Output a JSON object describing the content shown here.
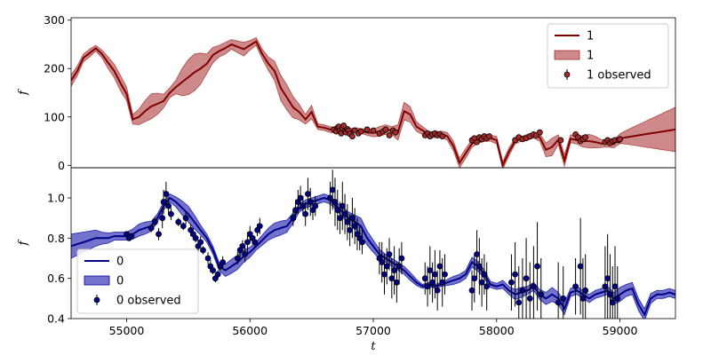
{
  "chart_data": [
    {
      "type": "line",
      "panel": "top",
      "ylabel": "f",
      "xlabel": "",
      "xlim": [
        54550,
        59450
      ],
      "ylim": [
        -5,
        305
      ],
      "yticks": [
        0,
        100,
        200,
        300
      ],
      "colors": {
        "line": "#800000",
        "band": "#a52a2a",
        "points": "#a52a2a"
      },
      "legend": {
        "placement": "top-right",
        "entries": [
          {
            "label": "1",
            "kind": "line"
          },
          {
            "label": "1",
            "kind": "band"
          },
          {
            "label": "1 observed",
            "kind": "points"
          }
        ]
      },
      "model": {
        "x": [
          54550,
          54600,
          54650,
          54700,
          54750,
          54800,
          54850,
          54900,
          54950,
          55000,
          55050,
          55100,
          55150,
          55200,
          55250,
          55300,
          55350,
          55400,
          55450,
          55500,
          55550,
          55600,
          55650,
          55700,
          55750,
          55800,
          55850,
          55900,
          55950,
          56000,
          56050,
          56100,
          56150,
          56200,
          56250,
          56300,
          56350,
          56400,
          56450,
          56500,
          56550,
          56600,
          56650,
          56700,
          56750,
          56800,
          56850,
          56900,
          56950,
          57000,
          57050,
          57100,
          57150,
          57200,
          57250,
          57300,
          57350,
          57400,
          57450,
          57500,
          57550,
          57600,
          57650,
          57700,
          57750,
          57800,
          57850,
          57900,
          57950,
          58000,
          58050,
          58100,
          58150,
          58200,
          58250,
          58300,
          58350,
          58400,
          58450,
          58500,
          58550,
          58600,
          58650,
          58700,
          58750,
          58800,
          58850,
          58900,
          58950,
          59000,
          59050,
          59100,
          59150,
          59200,
          59250,
          59300,
          59350,
          59400,
          59450
        ],
        "y": [
          175,
          195,
          222,
          232,
          242,
          230,
          212,
          195,
          170,
          148,
          95,
          100,
          112,
          122,
          127,
          133,
          150,
          162,
          172,
          182,
          192,
          200,
          210,
          228,
          236,
          242,
          250,
          245,
          240,
          248,
          256,
          230,
          210,
          195,
          160,
          140,
          120,
          110,
          95,
          110,
          80,
          78,
          74,
          72,
          70,
          70,
          73,
          71,
          68,
          67,
          70,
          74,
          72,
          68,
          112,
          105,
          80,
          72,
          64,
          63,
          65,
          60,
          40,
          5,
          25,
          45,
          52,
          55,
          56,
          52,
          0,
          28,
          50,
          55,
          58,
          62,
          58,
          32,
          38,
          53,
          10,
          55,
          52,
          50,
          50,
          48,
          45,
          46,
          44,
          55,
          58,
          60,
          62,
          64,
          66,
          68,
          70,
          72,
          74
        ],
        "band_halfwidth": [
          12,
          10,
          8,
          8,
          6,
          8,
          12,
          14,
          16,
          14,
          10,
          16,
          22,
          26,
          22,
          14,
          10,
          14,
          28,
          36,
          38,
          32,
          20,
          16,
          12,
          12,
          10,
          12,
          14,
          10,
          8,
          10,
          14,
          20,
          26,
          26,
          22,
          16,
          10,
          14,
          6,
          6,
          6,
          6,
          5,
          5,
          5,
          5,
          6,
          8,
          10,
          10,
          8,
          16,
          18,
          16,
          10,
          8,
          6,
          6,
          6,
          8,
          10,
          10,
          10,
          8,
          6,
          6,
          6,
          8,
          8,
          8,
          6,
          5,
          6,
          6,
          8,
          14,
          18,
          10,
          12,
          8,
          8,
          12,
          14,
          12,
          8,
          8,
          8,
          10,
          14,
          18,
          22,
          26,
          30,
          34,
          38,
          42,
          46
        ]
      },
      "observed": {
        "x": [
          56680,
          56700,
          56710,
          56720,
          56730,
          56740,
          56750,
          56760,
          56770,
          56780,
          56790,
          56800,
          56810,
          56830,
          56850,
          56880,
          56900,
          56950,
          57000,
          57050,
          57080,
          57100,
          57130,
          57160,
          57180,
          57420,
          57440,
          57460,
          57480,
          57500,
          57520,
          57540,
          57560,
          57800,
          57820,
          57840,
          57860,
          57880,
          57900,
          57920,
          57940,
          58150,
          58180,
          58210,
          58240,
          58270,
          58300,
          58320,
          58350,
          58520,
          58640,
          58660,
          58680,
          58700,
          58720,
          58880,
          58900,
          58920,
          58940,
          58960,
          58990,
          59000
        ],
        "y": [
          74,
          70,
          78,
          80,
          72,
          66,
          76,
          82,
          70,
          68,
          75,
          72,
          65,
          60,
          72,
          66,
          70,
          74,
          72,
          66,
          70,
          74,
          62,
          72,
          68,
          62,
          66,
          60,
          64,
          66,
          62,
          64,
          60,
          52,
          56,
          48,
          58,
          54,
          60,
          56,
          60,
          52,
          58,
          54,
          56,
          60,
          64,
          62,
          68,
          52,
          64,
          58,
          50,
          54,
          58,
          48,
          52,
          46,
          50,
          52,
          52,
          54
        ]
      }
    },
    {
      "type": "line",
      "panel": "bottom",
      "ylabel": "f",
      "xlabel": "t",
      "xlim": [
        54550,
        59450
      ],
      "ylim": [
        0.4,
        1.15
      ],
      "yticks": [
        0.4,
        0.6,
        0.8,
        1.0
      ],
      "yticklabels": [
        "0.4",
        "0.6",
        "0.8",
        "1.0"
      ],
      "xticks": [
        55000,
        56000,
        57000,
        58000,
        59000
      ],
      "colors": {
        "line": "#00008b",
        "band": "#0000a0",
        "points": "#00008b"
      },
      "legend": {
        "placement": "bottom-left",
        "entries": [
          {
            "label": "0",
            "kind": "line"
          },
          {
            "label": "0",
            "kind": "band"
          },
          {
            "label": "0 observed",
            "kind": "points"
          }
        ]
      },
      "model": {
        "x": [
          54550,
          54600,
          54650,
          54700,
          54750,
          54800,
          54850,
          54900,
          54950,
          55000,
          55050,
          55100,
          55150,
          55200,
          55250,
          55300,
          55350,
          55400,
          55450,
          55500,
          55550,
          55600,
          55650,
          55700,
          55750,
          55800,
          55850,
          55900,
          55950,
          56000,
          56050,
          56100,
          56150,
          56200,
          56250,
          56300,
          56350,
          56400,
          56450,
          56500,
          56550,
          56600,
          56650,
          56700,
          56750,
          56800,
          56850,
          56900,
          56950,
          57000,
          57050,
          57100,
          57150,
          57200,
          57250,
          57300,
          57350,
          57400,
          57450,
          57500,
          57550,
          57600,
          57650,
          57700,
          57750,
          57800,
          57850,
          57900,
          57950,
          58000,
          58050,
          58100,
          58150,
          58200,
          58250,
          58300,
          58350,
          58400,
          58450,
          58500,
          58550,
          58600,
          58650,
          58700,
          58750,
          58800,
          58850,
          58900,
          58950,
          59000,
          59050,
          59100,
          59150,
          59200,
          59250,
          59300,
          59350,
          59400,
          59450
        ],
        "y": [
          0.76,
          0.77,
          0.78,
          0.79,
          0.8,
          0.8,
          0.8,
          0.81,
          0.81,
          0.81,
          0.82,
          0.84,
          0.85,
          0.86,
          0.9,
          0.96,
          1.0,
          0.98,
          0.95,
          0.92,
          0.88,
          0.84,
          0.8,
          0.74,
          0.66,
          0.64,
          0.66,
          0.68,
          0.71,
          0.73,
          0.76,
          0.79,
          0.82,
          0.84,
          0.85,
          0.86,
          0.9,
          0.95,
          0.97,
          0.98,
          0.99,
          1.0,
          0.99,
          0.96,
          0.93,
          0.9,
          0.88,
          0.86,
          0.8,
          0.76,
          0.72,
          0.7,
          0.68,
          0.66,
          0.64,
          0.61,
          0.58,
          0.56,
          0.57,
          0.56,
          0.57,
          0.58,
          0.59,
          0.6,
          0.62,
          0.68,
          0.66,
          0.62,
          0.57,
          0.56,
          0.57,
          0.54,
          0.52,
          0.53,
          0.54,
          0.56,
          0.52,
          0.5,
          0.52,
          0.5,
          0.45,
          0.53,
          0.54,
          0.52,
          0.5,
          0.52,
          0.53,
          0.54,
          0.5,
          0.52,
          0.54,
          0.55,
          0.47,
          0.42,
          0.5,
          0.52,
          0.52,
          0.53,
          0.52
        ],
        "band_halfwidth": [
          0.06,
          0.055,
          0.05,
          0.045,
          0.04,
          0.03,
          0.025,
          0.02,
          0.02,
          0.02,
          0.025,
          0.03,
          0.03,
          0.025,
          0.02,
          0.02,
          0.02,
          0.025,
          0.035,
          0.04,
          0.035,
          0.025,
          0.02,
          0.02,
          0.02,
          0.03,
          0.035,
          0.035,
          0.03,
          0.025,
          0.02,
          0.025,
          0.03,
          0.035,
          0.035,
          0.03,
          0.025,
          0.02,
          0.02,
          0.02,
          0.02,
          0.02,
          0.02,
          0.02,
          0.025,
          0.03,
          0.035,
          0.04,
          0.035,
          0.03,
          0.025,
          0.02,
          0.02,
          0.02,
          0.02,
          0.02,
          0.015,
          0.01,
          0.01,
          0.01,
          0.01,
          0.015,
          0.02,
          0.02,
          0.02,
          0.025,
          0.025,
          0.02,
          0.015,
          0.015,
          0.02,
          0.02,
          0.025,
          0.025,
          0.02,
          0.02,
          0.025,
          0.03,
          0.035,
          0.03,
          0.03,
          0.02,
          0.02,
          0.02,
          0.02,
          0.02,
          0.02,
          0.02,
          0.03,
          0.035,
          0.03,
          0.03,
          0.03,
          0.03,
          0.025,
          0.02,
          0.02,
          0.02,
          0.02
        ]
      },
      "observed": {
        "x": [
          55000,
          55020,
          55040,
          55200,
          55230,
          55260,
          55290,
          55300,
          55320,
          55340,
          55360,
          55420,
          55460,
          55480,
          55520,
          55540,
          55560,
          55580,
          55600,
          55620,
          55660,
          55680,
          55700,
          55720,
          55740,
          55760,
          55780,
          55900,
          55920,
          55940,
          55960,
          55980,
          56000,
          56020,
          56040,
          56060,
          56080,
          56350,
          56370,
          56390,
          56410,
          56430,
          56450,
          56470,
          56490,
          56510,
          56530,
          56650,
          56670,
          56690,
          56710,
          56730,
          56750,
          56770,
          56790,
          56810,
          56830,
          56850,
          56870,
          56890,
          56910,
          57050,
          57070,
          57090,
          57110,
          57130,
          57150,
          57170,
          57190,
          57210,
          57230,
          57420,
          57440,
          57460,
          57480,
          57500,
          57520,
          57540,
          57560,
          57580,
          57800,
          57820,
          57840,
          57860,
          57880,
          57900,
          57920,
          58120,
          58150,
          58180,
          58210,
          58240,
          58270,
          58300,
          58330,
          58360,
          58500,
          58540,
          58640,
          58680,
          58700,
          58720,
          58880,
          58900,
          58920,
          58940,
          58960,
          58980
        ],
        "y": [
          0.82,
          0.8,
          0.81,
          0.85,
          0.88,
          0.82,
          0.9,
          0.98,
          1.02,
          0.96,
          0.92,
          0.88,
          0.86,
          0.9,
          0.84,
          0.82,
          0.8,
          0.76,
          0.78,
          0.74,
          0.7,
          0.66,
          0.64,
          0.6,
          0.62,
          0.66,
          0.68,
          0.7,
          0.74,
          0.76,
          0.72,
          0.78,
          0.82,
          0.8,
          0.78,
          0.84,
          0.86,
          0.9,
          0.94,
          0.98,
          1.0,
          0.96,
          0.92,
          1.02,
          0.98,
          0.94,
          0.96,
          1.0,
          1.04,
          0.98,
          0.94,
          0.9,
          0.96,
          0.92,
          0.88,
          0.84,
          0.9,
          0.86,
          0.82,
          0.8,
          0.78,
          0.7,
          0.68,
          0.62,
          0.66,
          0.72,
          0.6,
          0.64,
          0.58,
          0.66,
          0.7,
          0.6,
          0.56,
          0.64,
          0.58,
          0.62,
          0.54,
          0.66,
          0.58,
          0.62,
          0.54,
          0.6,
          0.72,
          0.66,
          0.58,
          0.62,
          0.56,
          0.58,
          0.62,
          0.48,
          0.54,
          0.6,
          0.5,
          0.56,
          0.66,
          0.52,
          0.48,
          0.5,
          0.56,
          0.66,
          0.5,
          0.54,
          0.56,
          0.6,
          0.52,
          0.48,
          0.56,
          0.5
        ],
        "yerr": [
          0.01,
          0.01,
          0.01,
          0.02,
          0.02,
          0.03,
          0.05,
          0.06,
          0.06,
          0.04,
          0.03,
          0.02,
          0.02,
          0.03,
          0.03,
          0.03,
          0.02,
          0.03,
          0.03,
          0.02,
          0.03,
          0.03,
          0.02,
          0.02,
          0.02,
          0.02,
          0.03,
          0.03,
          0.03,
          0.03,
          0.04,
          0.05,
          0.04,
          0.03,
          0.03,
          0.03,
          0.04,
          0.04,
          0.05,
          0.06,
          0.06,
          0.05,
          0.06,
          0.08,
          0.07,
          0.05,
          0.05,
          0.08,
          0.1,
          0.12,
          0.1,
          0.08,
          0.12,
          0.1,
          0.09,
          0.08,
          0.1,
          0.09,
          0.08,
          0.06,
          0.06,
          0.08,
          0.1,
          0.1,
          0.09,
          0.08,
          0.1,
          0.12,
          0.1,
          0.09,
          0.08,
          0.08,
          0.1,
          0.12,
          0.1,
          0.12,
          0.1,
          0.08,
          0.12,
          0.1,
          0.1,
          0.12,
          0.12,
          0.14,
          0.12,
          0.1,
          0.12,
          0.14,
          0.16,
          0.18,
          0.16,
          0.2,
          0.18,
          0.2,
          0.22,
          0.18,
          0.2,
          0.16,
          0.14,
          0.24,
          0.2,
          0.18,
          0.2,
          0.22,
          0.2,
          0.18,
          0.2,
          0.16
        ]
      }
    }
  ]
}
